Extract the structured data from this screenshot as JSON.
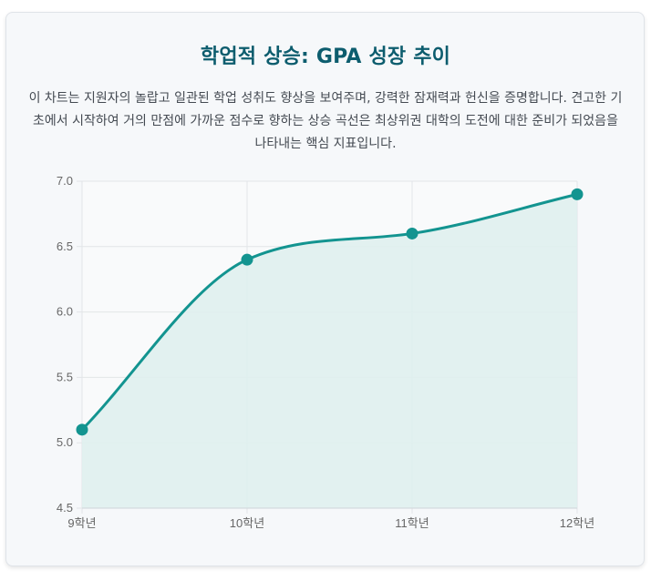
{
  "page": {
    "title": "학업적 상승: GPA 성장 추이",
    "description": "이 차트는 지원자의 놀랍고 일관된 학업 성취도 향상을 보여주며, 강력한 잠재력과 헌신을 증명합니다. 견고한 기초에서 시작하여 거의 만점에 가까운 점수로 향하는 상승 곡선은 최상위권 대학의 도전에 대한 준비가 되었음을 나타내는 핵심 지표입니다."
  },
  "chart_data": {
    "type": "area",
    "categories": [
      "9학년",
      "10학년",
      "11학년",
      "12학년"
    ],
    "values": [
      5.1,
      6.4,
      6.6,
      6.9
    ],
    "ylim": [
      4.5,
      7.0
    ],
    "yticks": [
      "4.5",
      "5.0",
      "5.5",
      "6.0",
      "6.5",
      "7.0"
    ],
    "grid": true,
    "legend": "none",
    "colors": {
      "line": "#139490",
      "fill": "#dfefee",
      "point": "#139490",
      "grid": "#e2e5e8"
    }
  }
}
